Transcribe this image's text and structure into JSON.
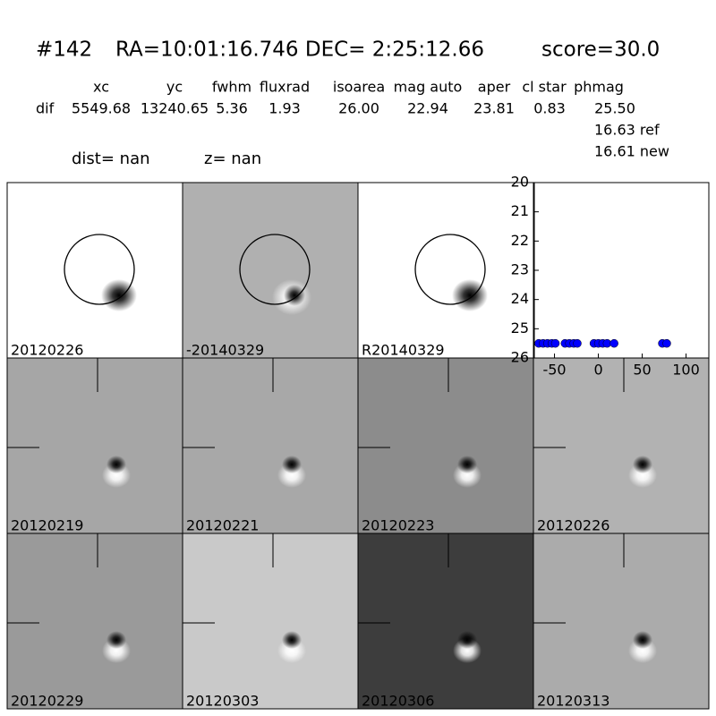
{
  "header": {
    "id": "#142",
    "coords": "RA=10:01:16.746 DEC= 2:25:12.66",
    "score": "score=30.0"
  },
  "table": {
    "columns": [
      "xc",
      "yc",
      "fwhm",
      "fluxrad",
      "isoarea",
      "mag auto",
      "aper",
      "cl star",
      "phmag"
    ],
    "row_label": "dif",
    "row": [
      "5549.68",
      "13240.65",
      "5.36",
      "1.93",
      "26.00",
      "22.94",
      "23.81",
      "0.83",
      "25.50"
    ],
    "extra": [
      "16.63 ref",
      "16.61 new"
    ],
    "dist": "dist=   nan",
    "z": "z=   nan"
  },
  "panels": [
    {
      "label": "20120226"
    },
    {
      "label": "-20140329"
    },
    {
      "label": "R20140329"
    },
    {
      "label": "20120219"
    },
    {
      "label": "20120221"
    },
    {
      "label": "20120223"
    },
    {
      "label": "20120226",
      "color": "#ff0000"
    },
    {
      "label": "20120229"
    },
    {
      "label": "20120303"
    },
    {
      "label": "20120306"
    },
    {
      "label": "20120313"
    }
  ],
  "chart_data": {
    "type": "scatter",
    "color": "#0000ff",
    "x": [
      -68,
      -63,
      -58,
      -53,
      -49,
      -38,
      -33,
      -28,
      -24,
      -5,
      0,
      5,
      10,
      18,
      73,
      78
    ],
    "values": [
      25.5,
      25.5,
      25.5,
      25.5,
      25.5,
      25.5,
      25.5,
      25.5,
      25.5,
      25.5,
      25.5,
      25.5,
      25.5,
      25.5,
      25.5,
      25.5
    ],
    "xlim": [
      -73,
      126
    ],
    "ylim": [
      26,
      20
    ],
    "xticks": [
      -50,
      0,
      50,
      100
    ],
    "yticks": [
      20,
      21,
      22,
      23,
      24,
      25,
      26
    ]
  }
}
